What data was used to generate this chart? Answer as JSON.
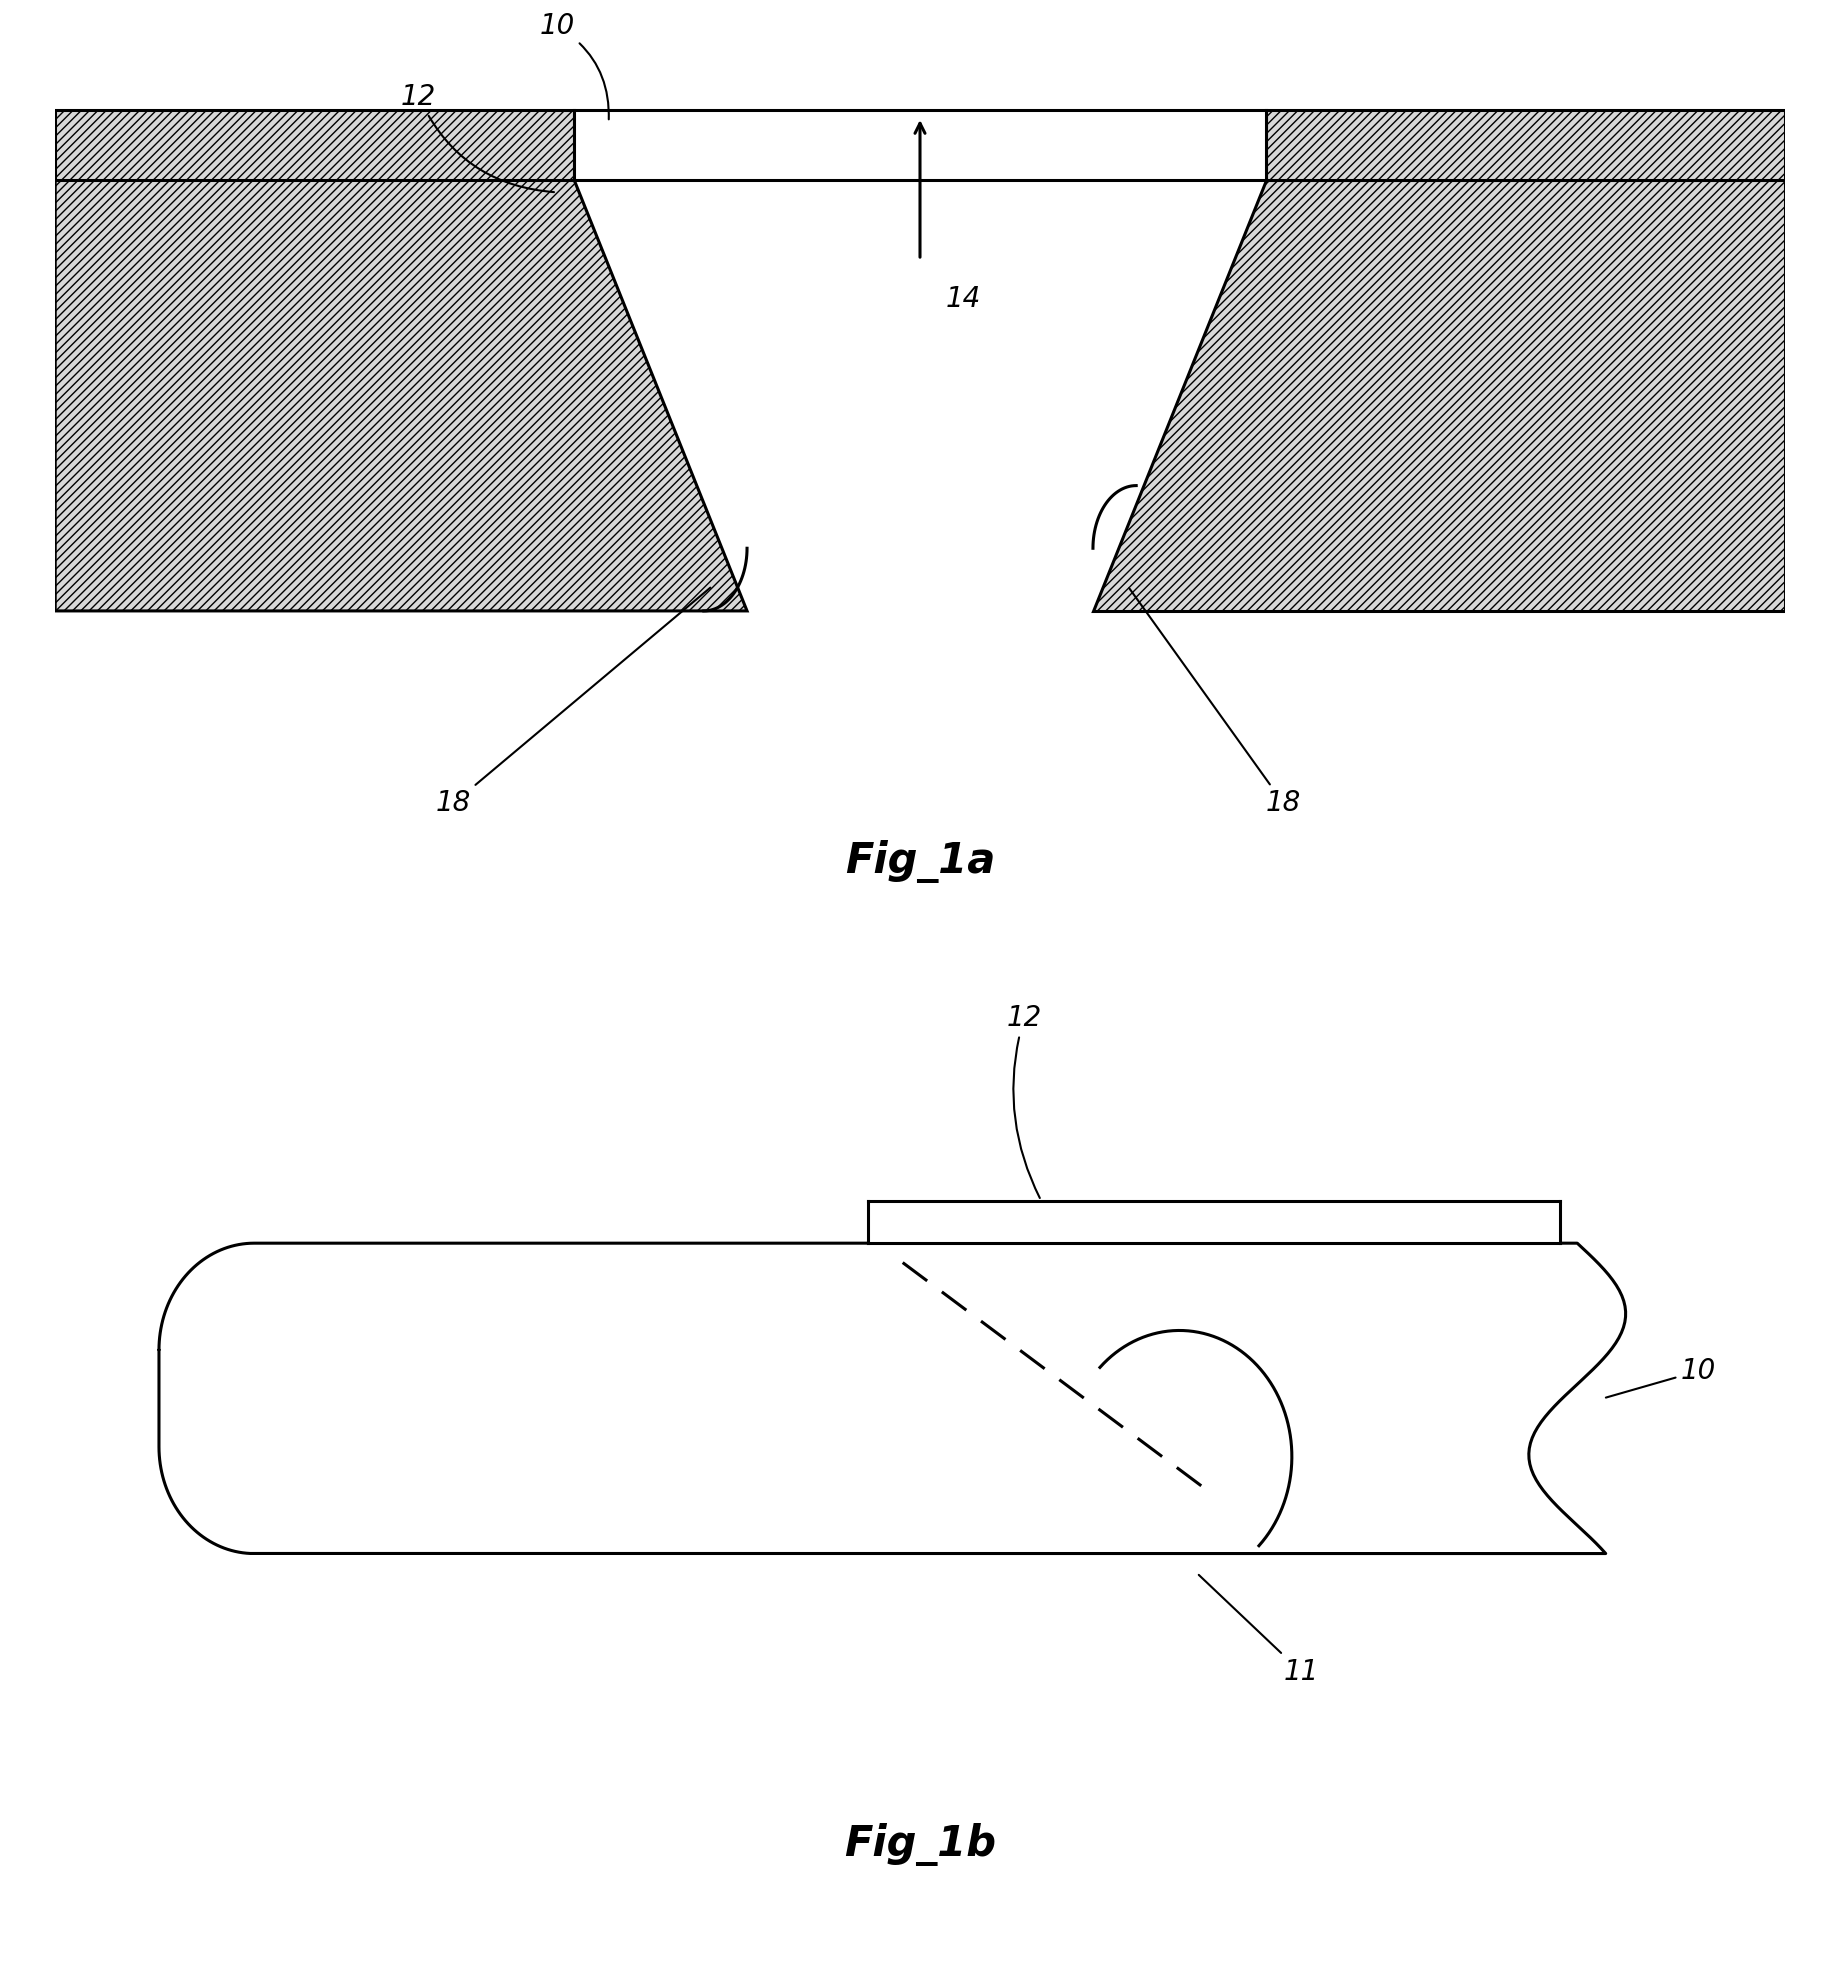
{
  "bg_color": "#ffffff",
  "fig_width": 18.4,
  "fig_height": 19.82,
  "fig1a": {
    "title": "Fig_1a",
    "label_10": "10",
    "label_12": "12",
    "label_14": "14",
    "label_18_left": "18",
    "label_18_right": "18",
    "hatch_pattern": "////",
    "hatch_color": "#000000",
    "face_color": "#d8d8d8",
    "line_color": "#000000",
    "line_width": 2.2
  },
  "fig1b": {
    "title": "Fig_1b",
    "label_10": "10",
    "label_11": "11",
    "label_12": "12",
    "line_color": "#000000",
    "line_width": 2.2
  }
}
